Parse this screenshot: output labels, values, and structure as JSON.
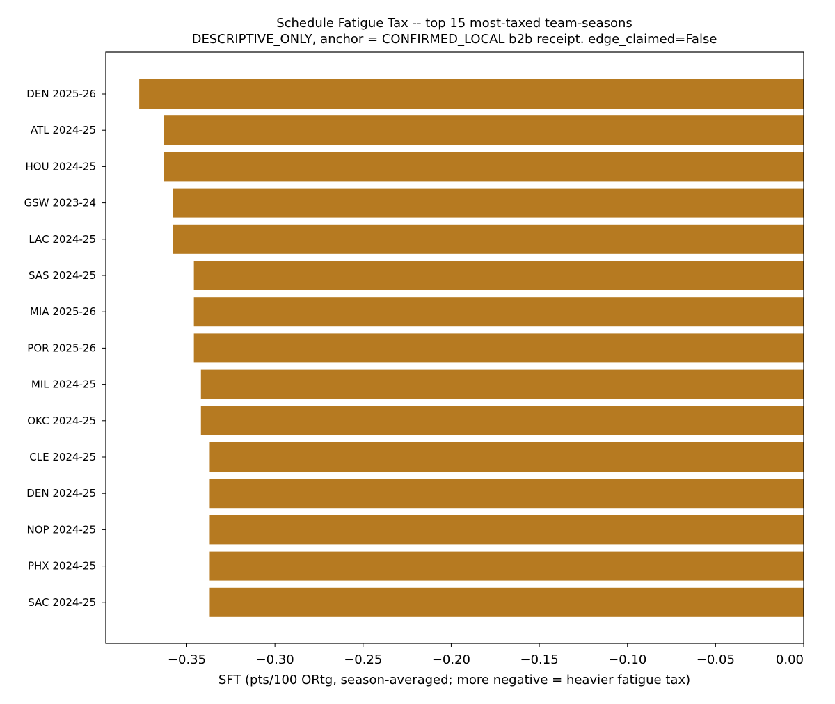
{
  "chart_data": {
    "type": "bar",
    "orientation": "horizontal",
    "title": "Schedule Fatigue Tax -- top 15 most-taxed team-seasons",
    "subtitle": "DESCRIPTIVE_ONLY, anchor = CONFIRMED_LOCAL b2b receipt. edge_claimed=False",
    "xlabel": "SFT (pts/100 ORtg, season-averaged; more negative = heavier fatigue tax)",
    "ylabel": "",
    "categories": [
      "DEN 2025-26",
      "ATL 2024-25",
      "HOU 2024-25",
      "GSW 2023-24",
      "LAC 2024-25",
      "SAS 2024-25",
      "MIA 2025-26",
      "POR 2025-26",
      "MIL 2024-25",
      "OKC 2024-25",
      "CLE 2024-25",
      "DEN 2024-25",
      "NOP 2024-25",
      "PHX 2024-25",
      "SAC 2024-25"
    ],
    "values": [
      -0.377,
      -0.363,
      -0.363,
      -0.358,
      -0.358,
      -0.346,
      -0.346,
      -0.346,
      -0.342,
      -0.342,
      -0.337,
      -0.337,
      -0.337,
      -0.337,
      -0.337
    ],
    "xlim": [
      -0.396,
      0.0
    ],
    "xticks": [
      -0.35,
      -0.3,
      -0.25,
      -0.2,
      -0.15,
      -0.1,
      -0.05,
      0.0
    ],
    "xtick_labels": [
      "−0.35",
      "−0.30",
      "−0.25",
      "−0.20",
      "−0.15",
      "−0.10",
      "−0.05",
      "0.00"
    ],
    "bar_color": "#b67a21",
    "grid": false,
    "legend": "none"
  }
}
